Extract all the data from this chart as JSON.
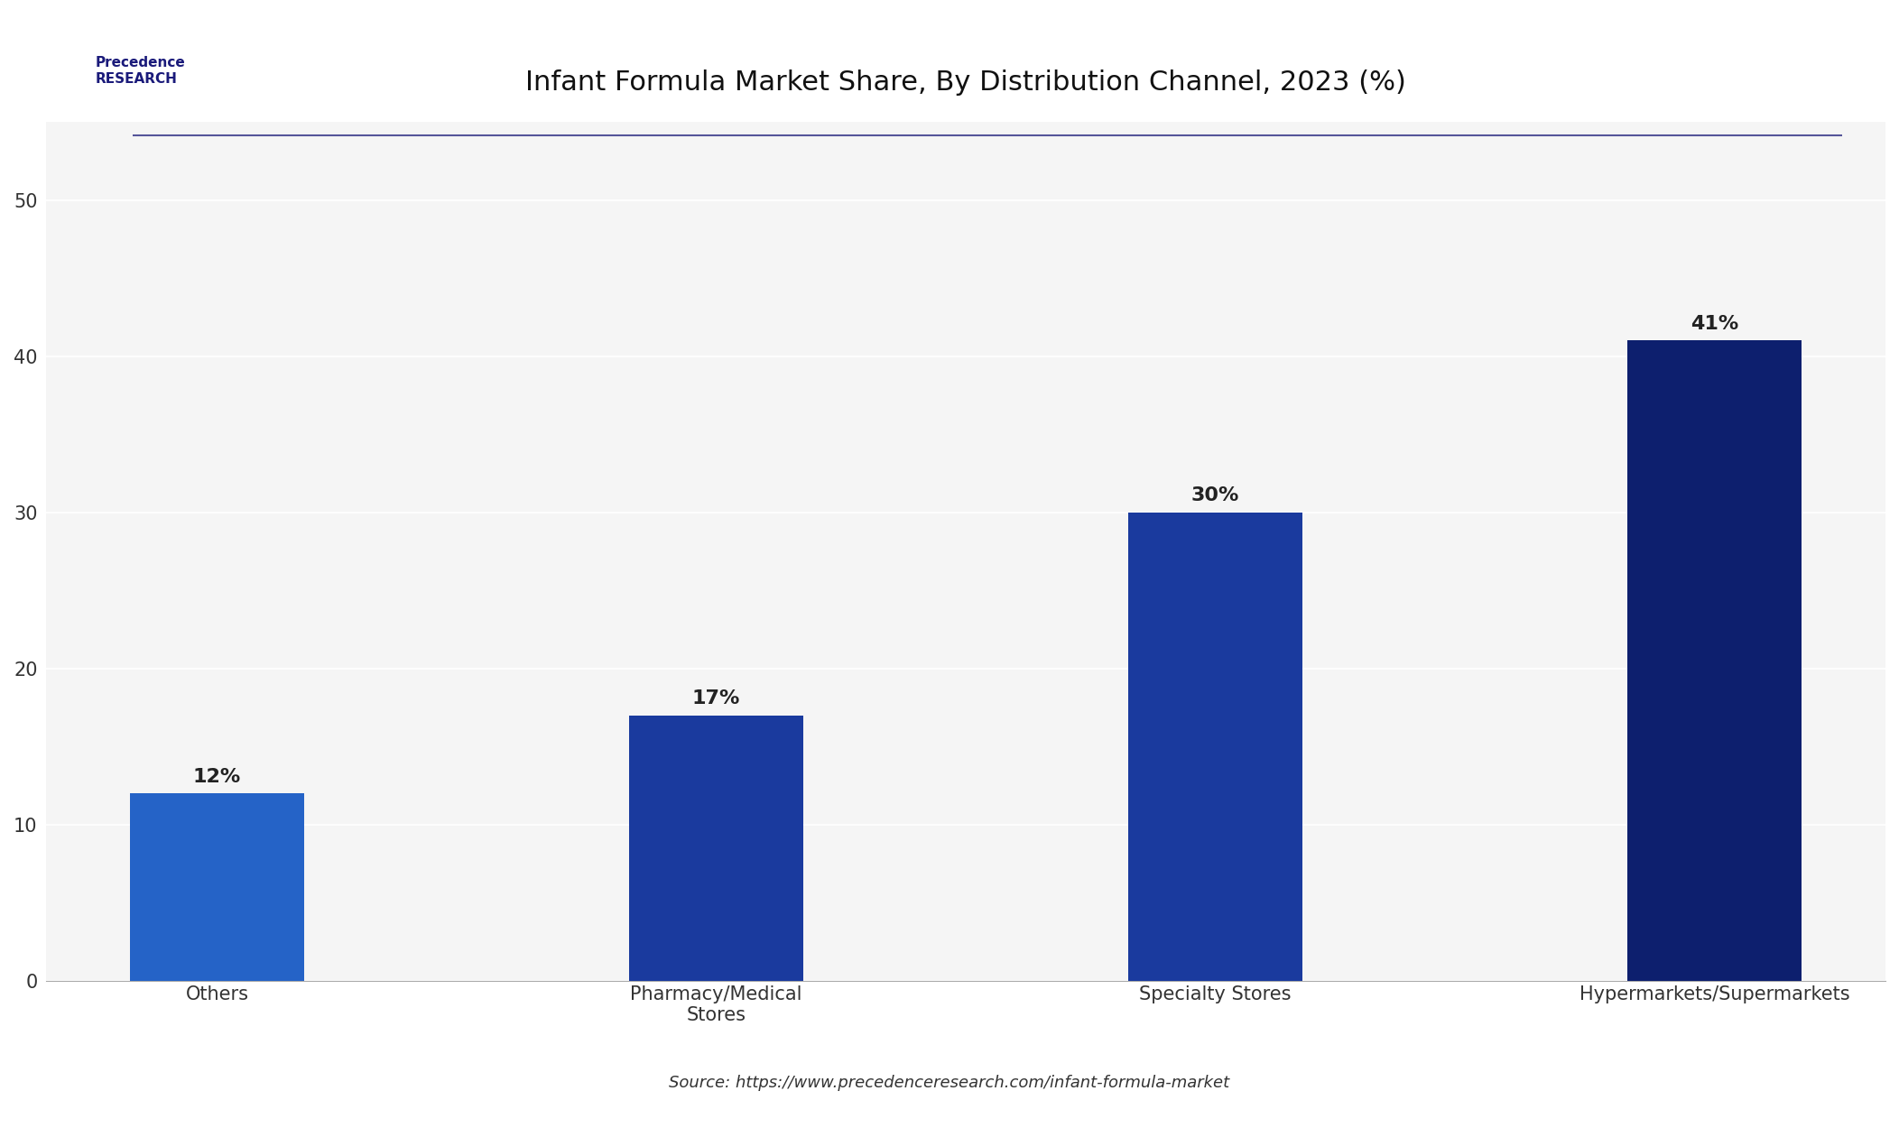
{
  "title": "Infant Formula Market Share, By Distribution Channel, 2023 (%)",
  "categories": [
    "Others",
    "Pharmacy/Medical\nStores",
    "Specialty Stores",
    "Hypermarkets/Supermarkets"
  ],
  "values": [
    12,
    17,
    30,
    41
  ],
  "labels": [
    "12%",
    "17%",
    "30%",
    "41%"
  ],
  "bar_colors": [
    "#2563c7",
    "#1a3a9e",
    "#1a3a9e",
    "#0d1f6e"
  ],
  "background_color": "#ffffff",
  "plot_bg_color": "#f5f5f5",
  "ylim": [
    0,
    55
  ],
  "yticks": [
    0,
    10,
    20,
    30,
    40,
    50
  ],
  "source_text": "Source: https://www.precedenceresearch.com/infant-formula-market",
  "label_fontsize": 16,
  "tick_fontsize": 15,
  "title_fontsize": 22,
  "source_fontsize": 13,
  "bar_width": 0.35
}
